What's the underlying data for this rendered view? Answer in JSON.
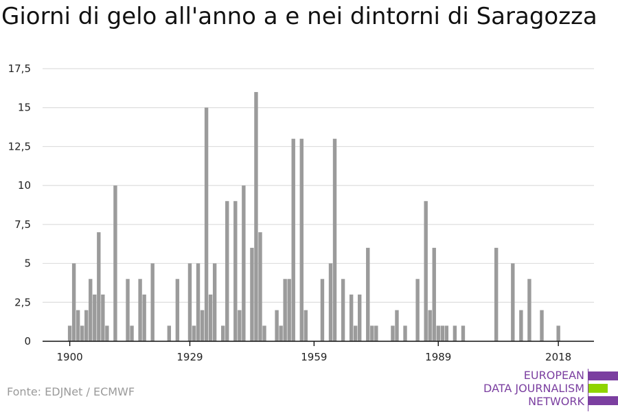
{
  "chart_data": {
    "type": "bar",
    "title": "Giorni di gelo all'anno a e nei dintorni di Saragozza",
    "x": [
      1900,
      1901,
      1902,
      1903,
      1904,
      1905,
      1906,
      1907,
      1908,
      1909,
      1910,
      1911,
      1912,
      1913,
      1914,
      1915,
      1916,
      1917,
      1918,
      1919,
      1920,
      1921,
      1922,
      1923,
      1924,
      1925,
      1926,
      1927,
      1928,
      1929,
      1930,
      1931,
      1932,
      1933,
      1934,
      1935,
      1936,
      1937,
      1938,
      1939,
      1940,
      1941,
      1942,
      1943,
      1944,
      1945,
      1946,
      1947,
      1948,
      1949,
      1950,
      1951,
      1952,
      1953,
      1954,
      1955,
      1956,
      1957,
      1958,
      1959,
      1960,
      1961,
      1962,
      1963,
      1964,
      1965,
      1966,
      1967,
      1968,
      1969,
      1970,
      1971,
      1972,
      1973,
      1974,
      1975,
      1976,
      1977,
      1978,
      1979,
      1980,
      1981,
      1982,
      1983,
      1984,
      1985,
      1986,
      1987,
      1988,
      1989,
      1990,
      1991,
      1992,
      1993,
      1994,
      1995,
      1996,
      1997,
      1998,
      1999,
      2000,
      2001,
      2002,
      2003,
      2004,
      2005,
      2006,
      2007,
      2008,
      2009,
      2010,
      2011,
      2012,
      2013,
      2014,
      2015,
      2016,
      2017,
      2018
    ],
    "values": [
      1,
      5,
      2,
      1,
      2,
      4,
      3,
      7,
      3,
      1,
      0,
      10,
      0,
      0,
      4,
      1,
      0,
      4,
      3,
      0,
      5,
      0,
      0,
      0,
      1,
      0,
      4,
      0,
      0,
      5,
      1,
      5,
      2,
      15,
      3,
      5,
      0,
      1,
      9,
      0,
      9,
      2,
      10,
      0,
      6,
      16,
      7,
      1,
      0,
      0,
      2,
      1,
      4,
      4,
      13,
      0,
      13,
      2,
      0,
      0,
      0,
      4,
      0,
      5,
      13,
      0,
      4,
      0,
      3,
      1,
      3,
      0,
      6,
      1,
      1,
      0,
      0,
      0,
      1,
      2,
      0,
      1,
      0,
      0,
      4,
      0,
      9,
      2,
      6,
      1,
      1,
      1,
      0,
      1,
      0,
      1,
      0,
      0,
      0,
      0,
      0,
      0,
      0,
      6,
      0,
      0,
      0,
      5,
      0,
      2,
      0,
      4,
      0,
      0,
      2,
      0,
      0,
      0,
      1
    ],
    "ylim": [
      0,
      17.5
    ],
    "y_ticks": [
      "0",
      "2,5",
      "5",
      "7,5",
      "10",
      "12,5",
      "15",
      "17,5"
    ],
    "x_ticks": [
      "1900",
      "1929",
      "1959",
      "1989",
      "2018"
    ],
    "bar_color": "#9b9b9b",
    "grid": true,
    "xlabel": "",
    "ylabel": ""
  },
  "source": "Fonte: EDJNet / ECMWF",
  "logo": {
    "lines": [
      "EUROPEAN",
      "DATA JOURNALISM",
      "NETWORK"
    ],
    "purple": "#7b3fa0",
    "green": "#8fd400"
  }
}
